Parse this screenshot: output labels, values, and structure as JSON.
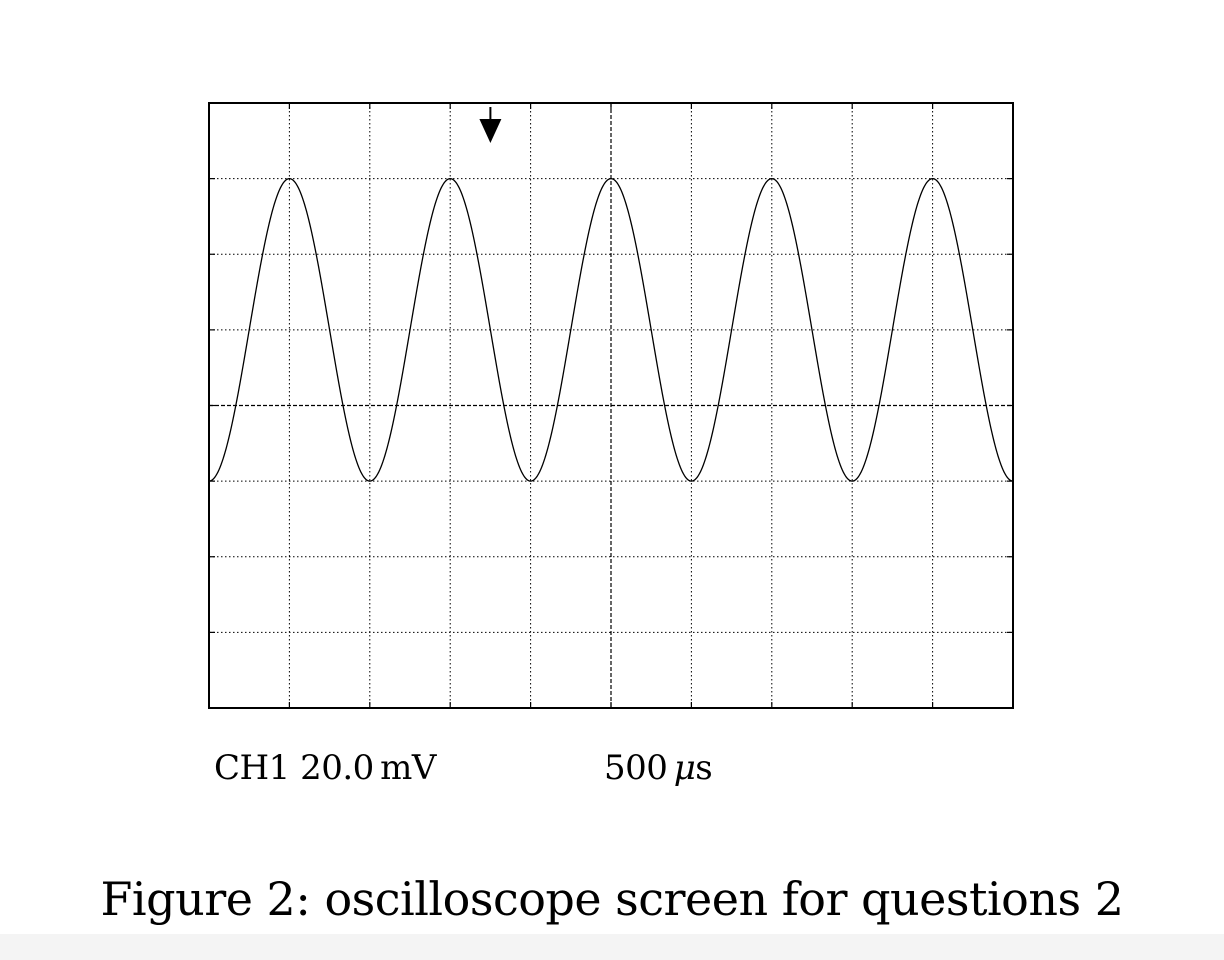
{
  "figure": {
    "caption": "Figure 2: oscilloscope screen for questions 2"
  },
  "scope": {
    "channel_label": "CH1 20.0 mV",
    "timebase_value": "500 ",
    "timebase_mu": "μ",
    "timebase_unit": "s",
    "divisions_x": 10,
    "divisions_y": 8,
    "trigger_marker_division_x": 3.5,
    "trace_color": "#000000",
    "grid_color": "#000000"
  },
  "chart_data": {
    "type": "line",
    "waveform": "cosine",
    "x_units": "divisions",
    "y_units": "divisions",
    "x_range": [
      0,
      10
    ],
    "y_range": [
      -4,
      4
    ],
    "amplitude_div": 2,
    "offset_div": 1,
    "period_div": 2,
    "peaks_x_div": [
      1,
      3,
      5,
      7,
      9
    ],
    "troughs_x_div": [
      0,
      2,
      4,
      6,
      8,
      10
    ],
    "channel_scale": "20.0 mV",
    "timebase": "500 μs"
  }
}
